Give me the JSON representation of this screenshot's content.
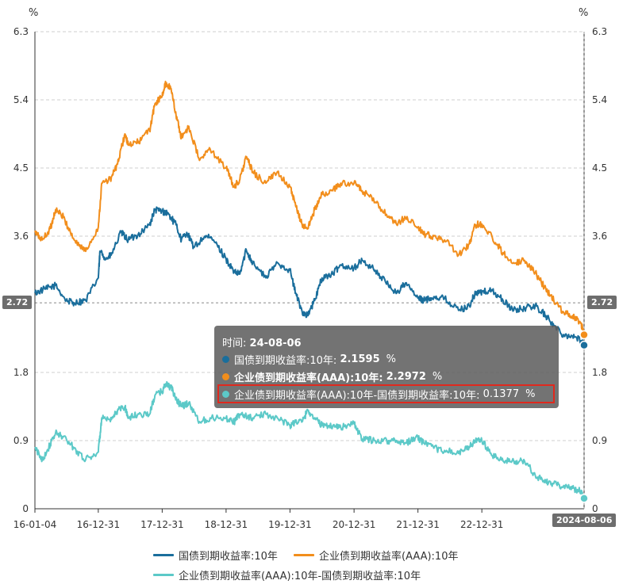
{
  "chart_data": {
    "type": "line",
    "y_unit_left": "%",
    "y_unit_right": "%",
    "ylim": [
      0,
      6.3
    ],
    "y_ticks": [
      "0",
      "0.9",
      "1.8",
      "2.72",
      "3.6",
      "4.5",
      "5.4",
      "6.3"
    ],
    "y_ticks_right": [
      "0",
      "0.9",
      "1.8",
      "2.72",
      "3.6",
      "4.5",
      "5.4",
      "6.3"
    ],
    "x_ticks": [
      "16-01-04",
      "16-12-31",
      "17-12-31",
      "18-12-31",
      "19-12-31",
      "20-12-31",
      "21-12-31",
      "22-12-31"
    ],
    "crosshair_value": "2.72",
    "crosshair_date": "2024-08-06",
    "series": [
      {
        "name": "国债到期收益率:10年",
        "color": "#1a6e9c",
        "points": [
          [
            "2016-01-04",
            2.85
          ],
          [
            "2016-03-01",
            2.9
          ],
          [
            "2016-05-01",
            2.95
          ],
          [
            "2016-07-01",
            2.75
          ],
          [
            "2016-08-15",
            2.72
          ],
          [
            "2016-10-20",
            2.75
          ],
          [
            "2016-12-31",
            3.05
          ],
          [
            "2017-01-10",
            3.4
          ],
          [
            "2017-02-15",
            3.3
          ],
          [
            "2017-03-15",
            3.35
          ],
          [
            "2017-05-10",
            3.65
          ],
          [
            "2017-06-20",
            3.55
          ],
          [
            "2017-08-15",
            3.62
          ],
          [
            "2017-10-20",
            3.75
          ],
          [
            "2017-11-20",
            3.95
          ],
          [
            "2017-12-31",
            3.93
          ],
          [
            "2018-02-01",
            3.9
          ],
          [
            "2018-03-20",
            3.75
          ],
          [
            "2018-04-20",
            3.55
          ],
          [
            "2018-05-20",
            3.65
          ],
          [
            "2018-07-01",
            3.45
          ],
          [
            "2018-09-01",
            3.6
          ],
          [
            "2018-10-20",
            3.55
          ],
          [
            "2018-12-31",
            3.3
          ],
          [
            "2019-02-15",
            3.12
          ],
          [
            "2019-03-20",
            3.1
          ],
          [
            "2019-04-25",
            3.42
          ],
          [
            "2019-06-01",
            3.25
          ],
          [
            "2019-08-15",
            3.05
          ],
          [
            "2019-10-20",
            3.25
          ],
          [
            "2019-12-31",
            3.15
          ],
          [
            "2020-02-01",
            2.85
          ],
          [
            "2020-03-10",
            2.6
          ],
          [
            "2020-04-10",
            2.55
          ],
          [
            "2020-05-20",
            2.75
          ],
          [
            "2020-07-01",
            3.05
          ],
          [
            "2020-09-01",
            3.1
          ],
          [
            "2020-10-15",
            3.22
          ],
          [
            "2020-12-31",
            3.18
          ],
          [
            "2021-02-15",
            3.28
          ],
          [
            "2021-05-01",
            3.15
          ],
          [
            "2021-07-15",
            2.95
          ],
          [
            "2021-09-01",
            2.85
          ],
          [
            "2021-10-20",
            2.98
          ],
          [
            "2021-12-31",
            2.78
          ],
          [
            "2022-02-01",
            2.75
          ],
          [
            "2022-04-01",
            2.8
          ],
          [
            "2022-06-01",
            2.78
          ],
          [
            "2022-08-20",
            2.62
          ],
          [
            "2022-10-20",
            2.68
          ],
          [
            "2022-11-25",
            2.85
          ],
          [
            "2022-12-31",
            2.86
          ],
          [
            "2023-03-01",
            2.88
          ],
          [
            "2023-05-01",
            2.75
          ],
          [
            "2023-07-01",
            2.62
          ],
          [
            "2023-09-01",
            2.65
          ],
          [
            "2023-11-01",
            2.68
          ],
          [
            "2024-01-01",
            2.55
          ],
          [
            "2024-02-15",
            2.42
          ],
          [
            "2024-04-10",
            2.3
          ],
          [
            "2024-06-01",
            2.28
          ],
          [
            "2024-07-20",
            2.22
          ],
          [
            "2024-08-06",
            2.1595
          ]
        ]
      },
      {
        "name": "企业债到期收益率(AAA):10年",
        "color": "#f28e1c",
        "points": [
          [
            "2016-01-04",
            3.65
          ],
          [
            "2016-02-15",
            3.55
          ],
          [
            "2016-04-01",
            3.7
          ],
          [
            "2016-05-01",
            3.95
          ],
          [
            "2016-06-15",
            3.85
          ],
          [
            "2016-08-15",
            3.55
          ],
          [
            "2016-10-20",
            3.4
          ],
          [
            "2016-12-31",
            3.72
          ],
          [
            "2017-01-20",
            4.3
          ],
          [
            "2017-03-10",
            4.35
          ],
          [
            "2017-04-20",
            4.55
          ],
          [
            "2017-06-01",
            4.95
          ],
          [
            "2017-06-20",
            4.8
          ],
          [
            "2017-08-20",
            4.85
          ],
          [
            "2017-10-20",
            5.0
          ],
          [
            "2017-11-20",
            5.35
          ],
          [
            "2017-12-31",
            5.45
          ],
          [
            "2018-01-20",
            5.62
          ],
          [
            "2018-02-20",
            5.55
          ],
          [
            "2018-03-20",
            5.2
          ],
          [
            "2018-04-20",
            4.9
          ],
          [
            "2018-06-01",
            5.05
          ],
          [
            "2018-08-01",
            4.6
          ],
          [
            "2018-10-01",
            4.75
          ],
          [
            "2018-12-31",
            4.5
          ],
          [
            "2019-02-15",
            4.25
          ],
          [
            "2019-03-20",
            4.35
          ],
          [
            "2019-04-25",
            4.65
          ],
          [
            "2019-06-01",
            4.45
          ],
          [
            "2019-08-15",
            4.3
          ],
          [
            "2019-10-20",
            4.45
          ],
          [
            "2019-12-31",
            4.25
          ],
          [
            "2020-02-01",
            4.0
          ],
          [
            "2020-03-10",
            3.75
          ],
          [
            "2020-04-10",
            3.7
          ],
          [
            "2020-05-20",
            3.95
          ],
          [
            "2020-07-01",
            4.15
          ],
          [
            "2020-09-01",
            4.2
          ],
          [
            "2020-10-15",
            4.3
          ],
          [
            "2020-12-31",
            4.3
          ],
          [
            "2021-02-15",
            4.2
          ],
          [
            "2021-05-01",
            4.05
          ],
          [
            "2021-07-15",
            3.85
          ],
          [
            "2021-09-01",
            3.75
          ],
          [
            "2021-10-20",
            3.85
          ],
          [
            "2021-12-31",
            3.72
          ],
          [
            "2022-02-01",
            3.62
          ],
          [
            "2022-04-01",
            3.6
          ],
          [
            "2022-06-01",
            3.55
          ],
          [
            "2022-08-20",
            3.35
          ],
          [
            "2022-10-20",
            3.5
          ],
          [
            "2022-11-25",
            3.75
          ],
          [
            "2022-12-31",
            3.76
          ],
          [
            "2023-03-01",
            3.58
          ],
          [
            "2023-05-01",
            3.38
          ],
          [
            "2023-07-01",
            3.25
          ],
          [
            "2023-09-01",
            3.28
          ],
          [
            "2023-11-01",
            3.12
          ],
          [
            "2024-01-01",
            2.9
          ],
          [
            "2024-02-15",
            2.75
          ],
          [
            "2024-04-10",
            2.6
          ],
          [
            "2024-06-01",
            2.55
          ],
          [
            "2024-07-20",
            2.45
          ],
          [
            "2024-08-06",
            2.2972
          ]
        ]
      },
      {
        "name": "企业债到期收益率(AAA):10年-国债到期收益率:10年",
        "color": "#5cc9c8",
        "points": [
          [
            "2016-01-04",
            0.8
          ],
          [
            "2016-02-15",
            0.65
          ],
          [
            "2016-04-01",
            0.85
          ],
          [
            "2016-05-01",
            1.0
          ],
          [
            "2016-06-15",
            0.95
          ],
          [
            "2016-08-15",
            0.8
          ],
          [
            "2016-10-20",
            0.65
          ],
          [
            "2016-12-31",
            0.75
          ],
          [
            "2017-01-20",
            1.2
          ],
          [
            "2017-03-10",
            1.15
          ],
          [
            "2017-04-20",
            1.3
          ],
          [
            "2017-06-01",
            1.35
          ],
          [
            "2017-06-20",
            1.2
          ],
          [
            "2017-08-20",
            1.25
          ],
          [
            "2017-10-20",
            1.25
          ],
          [
            "2017-11-20",
            1.5
          ],
          [
            "2017-12-31",
            1.55
          ],
          [
            "2018-01-20",
            1.65
          ],
          [
            "2018-02-20",
            1.6
          ],
          [
            "2018-03-20",
            1.45
          ],
          [
            "2018-04-20",
            1.35
          ],
          [
            "2018-06-01",
            1.4
          ],
          [
            "2018-08-01",
            1.15
          ],
          [
            "2018-10-01",
            1.2
          ],
          [
            "2018-12-31",
            1.2
          ],
          [
            "2019-02-15",
            1.15
          ],
          [
            "2019-03-20",
            1.25
          ],
          [
            "2019-04-25",
            1.22
          ],
          [
            "2019-06-01",
            1.2
          ],
          [
            "2019-08-15",
            1.25
          ],
          [
            "2019-10-20",
            1.2
          ],
          [
            "2019-12-31",
            1.1
          ],
          [
            "2020-02-01",
            1.15
          ],
          [
            "2020-03-10",
            1.15
          ],
          [
            "2020-04-10",
            1.3
          ],
          [
            "2020-05-20",
            1.2
          ],
          [
            "2020-07-01",
            1.1
          ],
          [
            "2020-09-01",
            1.1
          ],
          [
            "2020-10-15",
            1.08
          ],
          [
            "2020-12-31",
            1.12
          ],
          [
            "2021-02-15",
            0.92
          ],
          [
            "2021-05-01",
            0.9
          ],
          [
            "2021-07-15",
            0.9
          ],
          [
            "2021-09-01",
            0.9
          ],
          [
            "2021-10-20",
            0.87
          ],
          [
            "2021-12-31",
            0.94
          ],
          [
            "2022-02-01",
            0.87
          ],
          [
            "2022-04-01",
            0.8
          ],
          [
            "2022-06-01",
            0.77
          ],
          [
            "2022-08-20",
            0.73
          ],
          [
            "2022-10-20",
            0.82
          ],
          [
            "2022-11-25",
            0.9
          ],
          [
            "2022-12-31",
            0.9
          ],
          [
            "2023-03-01",
            0.7
          ],
          [
            "2023-05-01",
            0.63
          ],
          [
            "2023-07-01",
            0.63
          ],
          [
            "2023-09-01",
            0.63
          ],
          [
            "2023-11-01",
            0.44
          ],
          [
            "2024-01-01",
            0.35
          ],
          [
            "2024-02-15",
            0.33
          ],
          [
            "2024-04-10",
            0.3
          ],
          [
            "2024-06-01",
            0.27
          ],
          [
            "2024-07-20",
            0.23
          ],
          [
            "2024-08-06",
            0.1377
          ]
        ]
      }
    ]
  },
  "tooltip": {
    "time_label": "时间:",
    "time_value": "24-08-06",
    "rows": [
      {
        "name": "国债到期收益率:10年:",
        "value": "2.1595",
        "unit": "%",
        "color": "#1a6e9c"
      },
      {
        "name": "企业债到期收益率(AAA):10年:",
        "value": "2.2972",
        "unit": "%",
        "color": "#f28e1c"
      },
      {
        "name": "企业债到期收益率(AAA):10年-国债到期收益率:10年:",
        "value": "0.1377",
        "unit": "%",
        "color": "#5cc9c8"
      }
    ]
  },
  "legend": {
    "items": [
      {
        "label": "国债到期收益率:10年",
        "color": "#1a6e9c"
      },
      {
        "label": "企业债到期收益率(AAA):10年",
        "color": "#f28e1c"
      },
      {
        "label": "企业债到期收益率(AAA):10年-国债到期收益率:10年",
        "color": "#5cc9c8"
      }
    ]
  }
}
